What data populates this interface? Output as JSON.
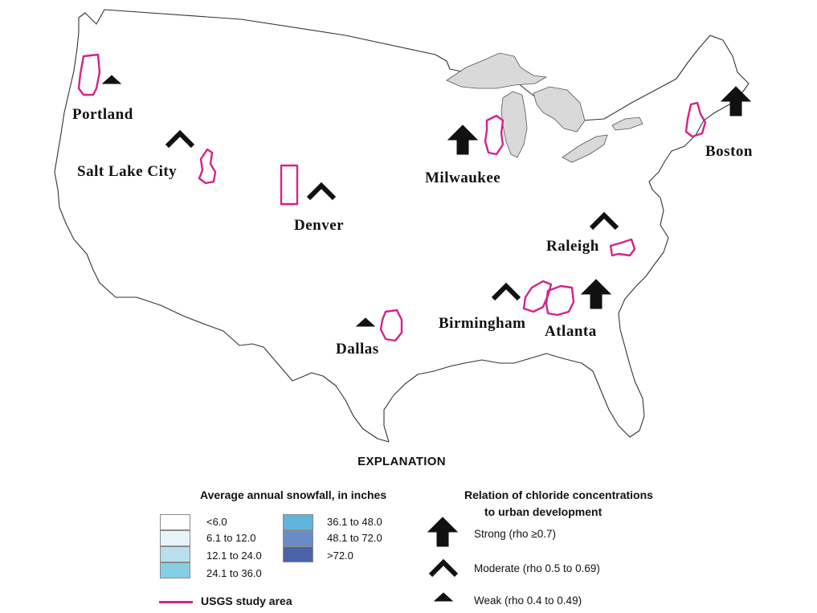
{
  "cities": [
    {
      "name": "Portland",
      "relation": "weak"
    },
    {
      "name": "Salt Lake City",
      "relation": "moderate"
    },
    {
      "name": "Denver",
      "relation": "moderate"
    },
    {
      "name": "Dallas",
      "relation": "weak"
    },
    {
      "name": "Milwaukee",
      "relation": "strong"
    },
    {
      "name": "Boston",
      "relation": "strong"
    },
    {
      "name": "Raleigh",
      "relation": "moderate"
    },
    {
      "name": "Birmingham",
      "relation": "moderate"
    },
    {
      "name": "Atlanta",
      "relation": "strong"
    }
  ],
  "explanation": {
    "title": "EXPLANATION",
    "snowfall_header": "Average annual snowfall, in inches",
    "snowfall_classes": [
      {
        "label": "<6.0",
        "color": "#ffffff"
      },
      {
        "label": "6.1 to 12.0",
        "color": "#e6f4f8"
      },
      {
        "label": "12.1 to 24.0",
        "color": "#b8e0ec"
      },
      {
        "label": "24.1 to 36.0",
        "color": "#84cfe3"
      },
      {
        "label": "36.1 to 48.0",
        "color": "#5fb5dc"
      },
      {
        "label": "48.1 to 72.0",
        "color": "#6a8cc6"
      },
      {
        "label": ">72.0",
        "color": "#4b62a9"
      }
    ],
    "study_area_label": "USGS study area",
    "study_area_color": "#d6218a",
    "relation_header_line1": "Relation of chloride concentrations",
    "relation_header_line2": "to urban development",
    "relation_classes": {
      "strong": "Strong (rho ≥0.7)",
      "moderate": "Moderate (rho 0.5 to 0.69)",
      "weak": "Weak (rho 0.4 to 0.49)"
    }
  },
  "colors": {
    "land": "#ffffff",
    "water": "#d9d9d9",
    "outline": "#333333",
    "symbol": "#111111"
  }
}
